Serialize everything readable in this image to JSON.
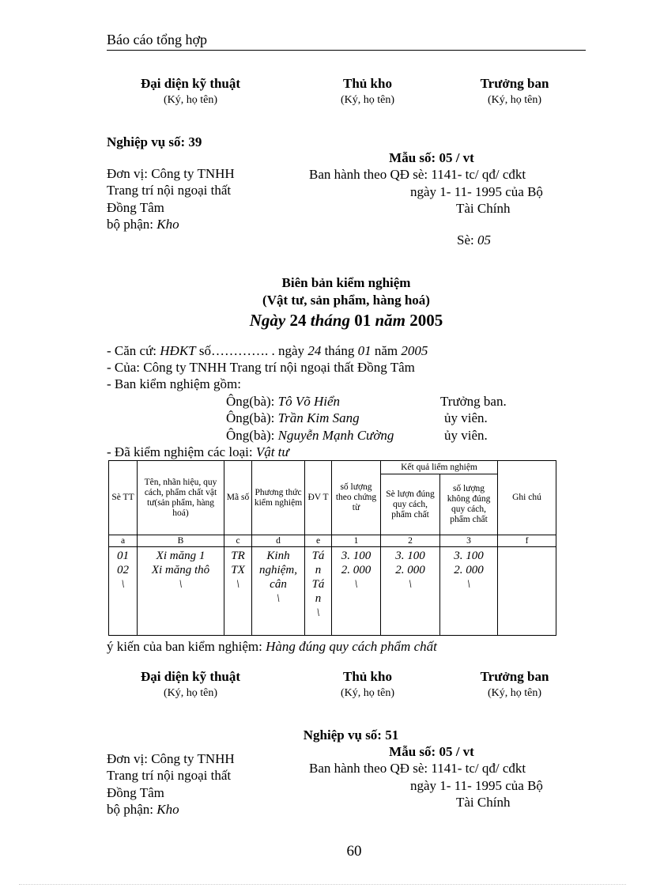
{
  "header": {
    "title": "Báo cáo tổng hợp"
  },
  "signatures": [
    {
      "role": "Đại diện kỹ thuật",
      "note": "(Ký, họ tên)"
    },
    {
      "role": "Thủ kho",
      "note": "(Ký, họ tên)"
    },
    {
      "role": "Trưởng ban",
      "note": "(Ký, họ tên)"
    }
  ],
  "op1": {
    "title": "Nghiệp vụ số: 39",
    "unit": [
      "Đơn vị:  Công ty TNHH",
      "Trang trí nội ngoại thất",
      "Đồng Tâm"
    ],
    "dept_label": "bộ phận: ",
    "dept": "Kho",
    "form": "Mẫu số: 05 / vt",
    "issued": "Ban hành theo QĐ sè: 1141- tc/ qđ/ cđkt",
    "issued2": "ngày 1- 11- 1995  của Bộ",
    "issued3": "Tài Chính",
    "no_label": "Sè: ",
    "no": "05"
  },
  "report": {
    "title": "Biên bản kiểm nghiệm",
    "subtitle": "(Vật tư, sản phẩm, hàng hoá)",
    "date": {
      "w1": "Ngày",
      "d": " 24 ",
      "w2": "tháng",
      "m": " 01 ",
      "w3": "năm",
      "y": " 2005"
    },
    "basis": {
      "p1": "- Căn cứ: ",
      "doc": "HĐKT",
      "p2": " số…………. . ngày ",
      "d": "24",
      "p3": " tháng ",
      "m": "01",
      "p4": " năm ",
      "y": "2005"
    },
    "of": "- Của: Công ty TNHH Trang trí nội ngoại thất Đồng Tâm",
    "board_label": "- Ban kiểm nghiệm  gồm:",
    "members": [
      {
        "prefix": "Ông(bà): ",
        "name": "Tô Võ Hiển",
        "role": "Trưởng ban."
      },
      {
        "prefix": "Ông(bà): ",
        "name": "Trần Kim Sang",
        "role": "ủy viên."
      },
      {
        "prefix": "Ông(bà): ",
        "name": "Nguyễn Mạnh Cường",
        "role": "ủy viên."
      }
    ],
    "types_label": "- Đã kiểm nghiệm  các loại:  ",
    "types": "Vật tư",
    "opinion_label": "ý kiến  của ban kiểm  nghiệm:  ",
    "opinion": "Hàng đúng quy cách phẩm chất"
  },
  "table": {
    "headers": [
      "Sè TT",
      "Tên, nhãn hiệu, quy cách, phẩm chất vật tư(sản phẩm, hàng hoá)",
      "Mã số",
      "Phương thức kiểm nghiệm",
      "ĐV T",
      "số lượng theo chứng từ",
      "Kết quả liểm  nghiệm",
      "Sè lượn đúng quy cách, phẩm chất",
      "số lượng không đúng quy cách, phẩm chất",
      "Ghi chú"
    ],
    "codes": [
      "a",
      "B",
      "c",
      "d",
      "e",
      "1",
      "2",
      "3",
      "f"
    ],
    "cells": [
      "01\n02\n\\",
      "Xi măng 1\nXi măng thô\n\\",
      "TR\nTX\n\\",
      "Kinh\nnghiệm,\ncân\n\\",
      "Tá\nn\nTá\nn\n\\",
      "3. 100\n2. 000\n\\",
      "3. 100\n2. 000\n\\",
      "3. 100\n2. 000\n\\",
      ""
    ]
  },
  "op2": {
    "title": "Nghiệp vụ số: 51",
    "unit": [
      "Đơn vị:  Công ty TNHH",
      "Trang trí nội ngoại thất",
      "Đồng Tâm"
    ],
    "dept_label": "bộ phận: ",
    "dept": "Kho",
    "form": "Mẫu số: 05 / vt",
    "issued": "Ban hành theo QĐ sè: 1141- tc/ qđ/ cđkt",
    "issued2": "ngày 1- 11- 1995  của Bộ",
    "issued3": "Tài Chính"
  },
  "footer": {
    "page": "60"
  }
}
